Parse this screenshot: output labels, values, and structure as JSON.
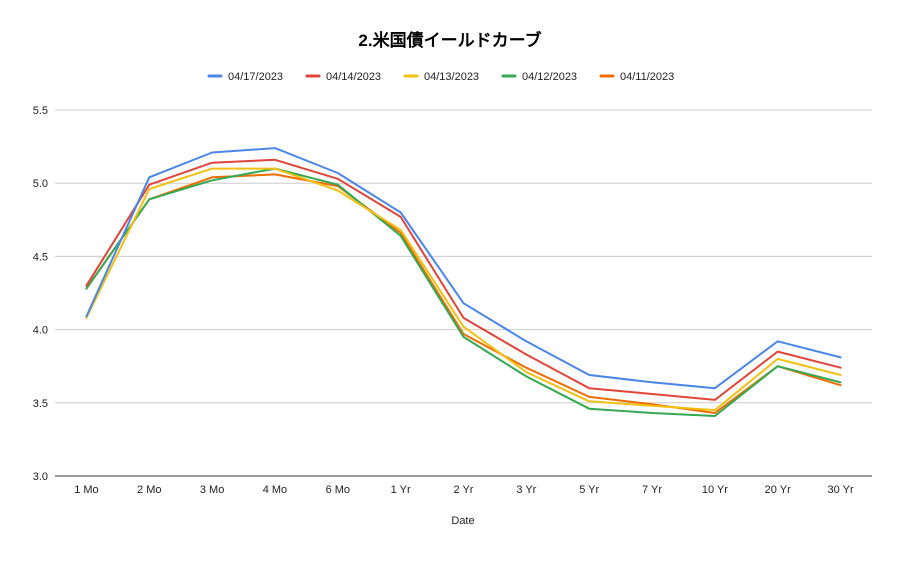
{
  "chart_data": {
    "type": "line",
    "title": "2.米国債イールドカーブ",
    "xlabel": "Date",
    "ylabel": "",
    "ylim": [
      3.0,
      5.5
    ],
    "yticks": [
      "3.0",
      "3.5",
      "4.0",
      "4.5",
      "5.0",
      "5.5"
    ],
    "grid": true,
    "legend_position": "top",
    "categories": [
      "1 Mo",
      "2 Mo",
      "3 Mo",
      "4 Mo",
      "6 Mo",
      "1 Yr",
      "2 Yr",
      "3 Yr",
      "5 Yr",
      "7 Yr",
      "10 Yr",
      "20 Yr",
      "30 Yr"
    ],
    "series": [
      {
        "name": "04/17/2023",
        "color": "#4a86e8",
        "values": [
          4.09,
          5.04,
          5.21,
          5.24,
          5.07,
          4.8,
          4.18,
          3.92,
          3.69,
          3.64,
          3.6,
          3.92,
          3.81
        ]
      },
      {
        "name": "04/14/2023",
        "color": "#e0453a",
        "values": [
          4.3,
          4.99,
          5.14,
          5.16,
          5.03,
          4.77,
          4.08,
          3.83,
          3.6,
          3.56,
          3.52,
          3.85,
          3.74
        ]
      },
      {
        "name": "04/13/2023",
        "color": "#f2c012",
        "values": [
          4.08,
          4.96,
          5.1,
          5.1,
          4.95,
          4.68,
          4.02,
          3.71,
          3.51,
          3.48,
          3.45,
          3.8,
          3.69
        ]
      },
      {
        "name": "04/12/2023",
        "color": "#34a853",
        "values": [
          4.28,
          4.89,
          5.02,
          5.1,
          4.99,
          4.64,
          3.95,
          3.68,
          3.46,
          3.43,
          3.41,
          3.75,
          3.64
        ]
      },
      {
        "name": "04/11/2023",
        "color": "#ef6c00",
        "values": [
          4.28,
          4.89,
          5.04,
          5.06,
          4.98,
          4.66,
          3.97,
          3.74,
          3.54,
          3.49,
          3.43,
          3.75,
          3.62
        ]
      }
    ]
  }
}
